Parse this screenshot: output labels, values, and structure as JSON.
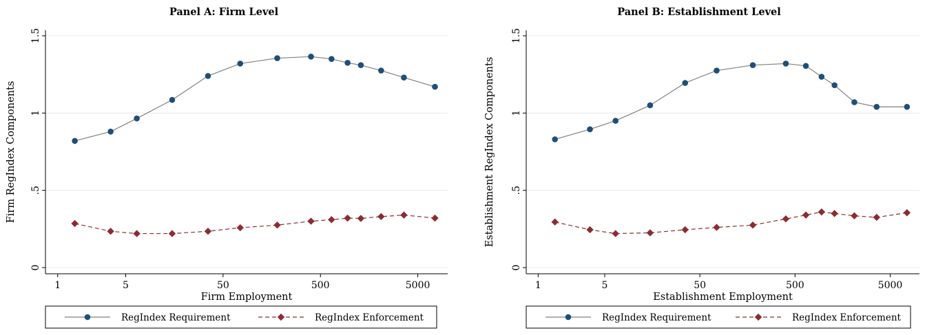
{
  "colors": {
    "requirement": "#1f4e79",
    "enforcement": "#8b2c32",
    "line": "#808080",
    "grid": "#e8e8e8"
  },
  "legend": {
    "requirement_label": "RegIndex Requirement",
    "enforcement_label": "RegIndex Enforcement"
  },
  "chart_data": [
    {
      "type": "line",
      "title": "Panel A: Firm Level",
      "xlabel": "Firm Employment",
      "ylabel": "Firm RegIndex Components",
      "x_scale": "log",
      "x_ticks": [
        1,
        5,
        50,
        500,
        5000
      ],
      "x_tick_labels": [
        "1",
        "5",
        "50",
        "500",
        "5000"
      ],
      "y_ticks": [
        0,
        0.5,
        1,
        1.5
      ],
      "y_tick_labels": [
        "0",
        ".5",
        "1",
        "1.5"
      ],
      "ylim": [
        0,
        1.5
      ],
      "grid": true,
      "legend_position": "bottom",
      "series": [
        {
          "name": "RegIndex Requirement",
          "marker": "circle",
          "line_style": "solid",
          "points": [
            [
              1.5,
              0.82
            ],
            [
              3.5,
              0.88
            ],
            [
              6.5,
              0.965
            ],
            [
              15,
              1.085
            ],
            [
              35,
              1.24
            ],
            [
              75,
              1.32
            ],
            [
              180,
              1.355
            ],
            [
              400,
              1.365
            ],
            [
              650,
              1.35
            ],
            [
              950,
              1.325
            ],
            [
              1300,
              1.31
            ],
            [
              2100,
              1.275
            ],
            [
              3600,
              1.23
            ],
            [
              7500,
              1.17
            ]
          ]
        },
        {
          "name": "RegIndex Enforcement",
          "marker": "diamond",
          "line_style": "dashed",
          "points": [
            [
              1.5,
              0.285
            ],
            [
              3.5,
              0.235
            ],
            [
              6.5,
              0.22
            ],
            [
              15,
              0.22
            ],
            [
              35,
              0.235
            ],
            [
              75,
              0.258
            ],
            [
              180,
              0.275
            ],
            [
              400,
              0.3
            ],
            [
              650,
              0.31
            ],
            [
              950,
              0.32
            ],
            [
              1300,
              0.318
            ],
            [
              2100,
              0.33
            ],
            [
              3600,
              0.34
            ],
            [
              7500,
              0.32
            ]
          ]
        }
      ]
    },
    {
      "type": "line",
      "title": "Panel B: Establishment Level",
      "xlabel": "Establishment Employment",
      "ylabel": "Establishment RegIndex Components",
      "x_scale": "log",
      "x_ticks": [
        1,
        5,
        50,
        500,
        5000
      ],
      "x_tick_labels": [
        "1",
        "5",
        "50",
        "500",
        "5000"
      ],
      "y_ticks": [
        0,
        0.5,
        1,
        1.5
      ],
      "y_tick_labels": [
        "0",
        ".5",
        "1",
        "1.5"
      ],
      "ylim": [
        0,
        1.5
      ],
      "grid": true,
      "legend_position": "bottom",
      "series": [
        {
          "name": "RegIndex Requirement",
          "marker": "circle",
          "line_style": "solid",
          "points": [
            [
              1.5,
              0.83
            ],
            [
              3.5,
              0.895
            ],
            [
              6.5,
              0.95
            ],
            [
              15,
              1.05
            ],
            [
              35,
              1.195
            ],
            [
              75,
              1.275
            ],
            [
              180,
              1.31
            ],
            [
              400,
              1.32
            ],
            [
              650,
              1.305
            ],
            [
              950,
              1.235
            ],
            [
              1300,
              1.18
            ],
            [
              2100,
              1.07
            ],
            [
              3600,
              1.04
            ],
            [
              7500,
              1.04
            ]
          ]
        },
        {
          "name": "RegIndex Enforcement",
          "marker": "diamond",
          "line_style": "dashed",
          "points": [
            [
              1.5,
              0.295
            ],
            [
              3.5,
              0.245
            ],
            [
              6.5,
              0.22
            ],
            [
              15,
              0.225
            ],
            [
              35,
              0.245
            ],
            [
              75,
              0.26
            ],
            [
              180,
              0.275
            ],
            [
              400,
              0.315
            ],
            [
              650,
              0.34
            ],
            [
              950,
              0.36
            ],
            [
              1300,
              0.35
            ],
            [
              2100,
              0.335
            ],
            [
              3600,
              0.325
            ],
            [
              7500,
              0.355
            ]
          ]
        }
      ]
    }
  ]
}
